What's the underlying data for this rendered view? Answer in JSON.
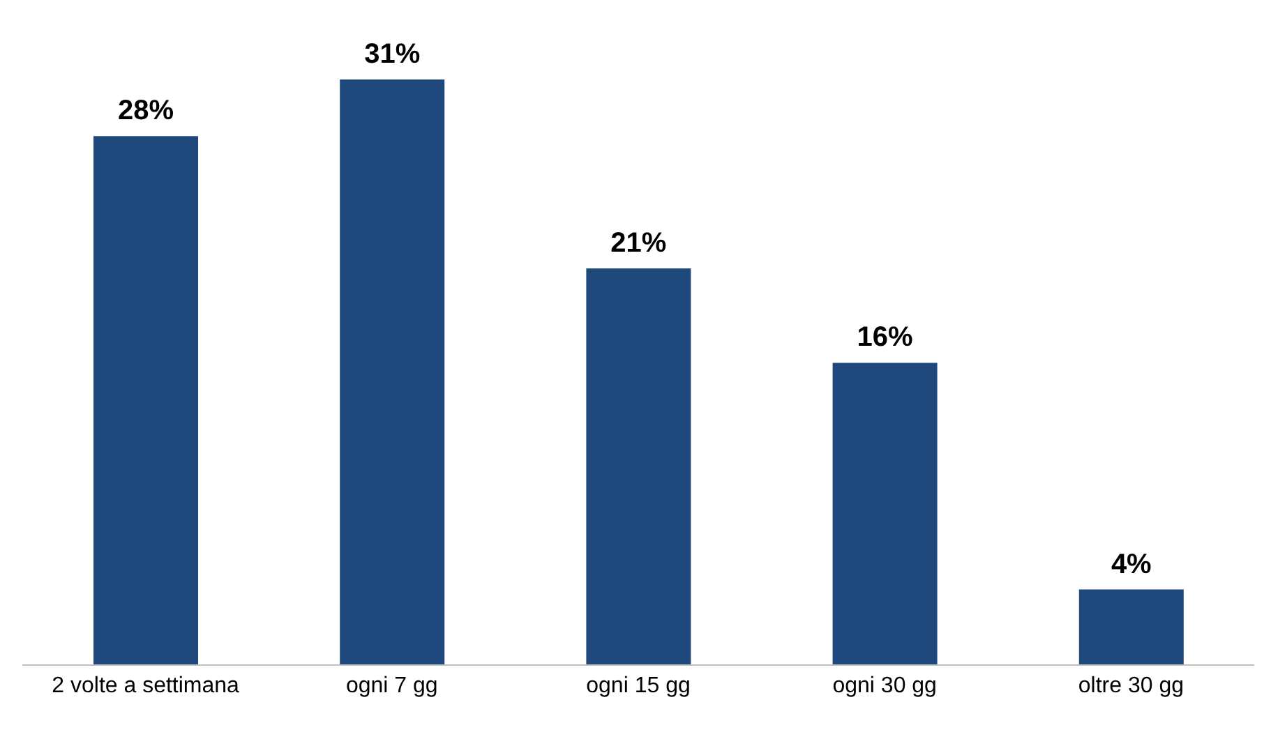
{
  "chart_data": {
    "type": "bar",
    "categories": [
      "2 volte a settimana",
      "ogni 7 gg",
      "ogni 15 gg",
      "ogni 30 gg",
      "oltre 30 gg"
    ],
    "values": [
      28,
      31,
      21,
      16,
      4
    ],
    "value_labels": [
      "28%",
      "31%",
      "21%",
      "16%",
      "4%"
    ],
    "color": "#1f497d",
    "grid": false,
    "legend": false
  }
}
